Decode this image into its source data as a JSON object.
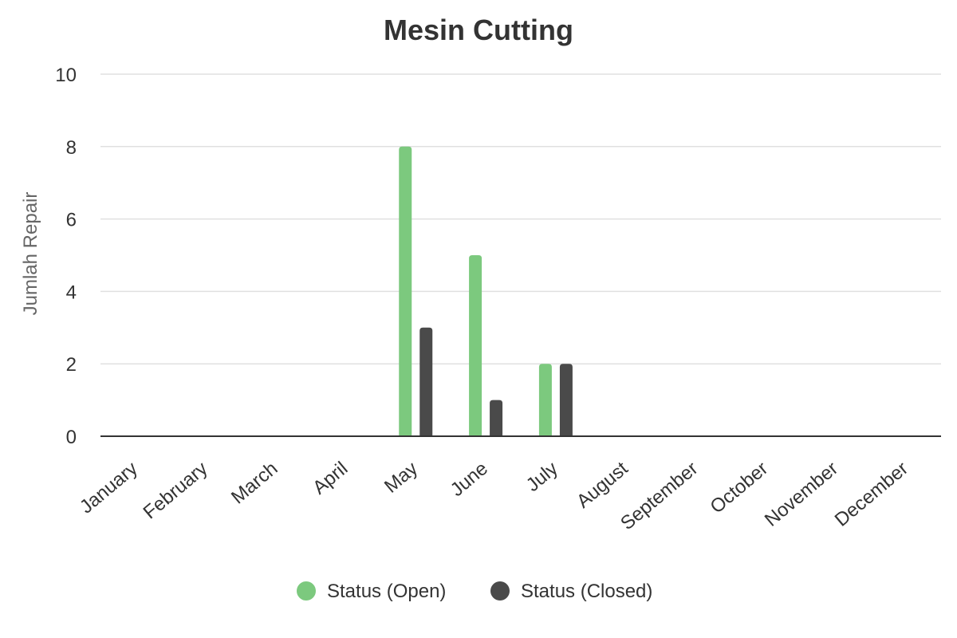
{
  "chart_data": {
    "type": "bar",
    "title": "Mesin Cutting",
    "xlabel": "",
    "ylabel": "Jumlah Repair",
    "ylim": [
      0,
      10
    ],
    "yticks": [
      0,
      2,
      4,
      6,
      8,
      10
    ],
    "grid": true,
    "legend_position": "bottom",
    "categories": [
      "January",
      "February",
      "March",
      "April",
      "May",
      "June",
      "July",
      "August",
      "September",
      "October",
      "November",
      "December"
    ],
    "series": [
      {
        "name": "Status (Open)",
        "color": "#7cc97e",
        "values": [
          0,
          0,
          0,
          0,
          8,
          5,
          2,
          0,
          0,
          0,
          0,
          0
        ]
      },
      {
        "name": "Status (Closed)",
        "color": "#4a4a4a",
        "values": [
          0,
          0,
          0,
          0,
          3,
          1,
          2,
          0,
          0,
          0,
          0,
          0
        ]
      }
    ]
  }
}
